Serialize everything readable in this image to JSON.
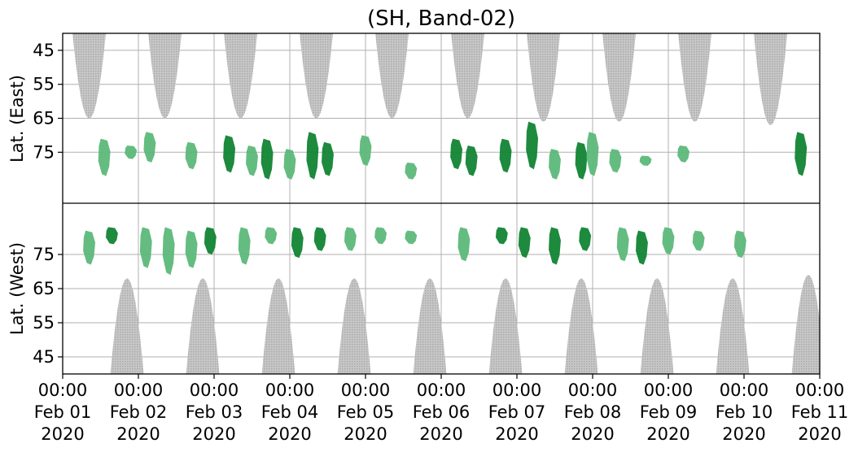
{
  "chart_data": {
    "type": "heatmap",
    "title": "(SH, Band-02)",
    "ylabel_top": "Lat. (East)",
    "ylabel_bottom": "Lat. (West)",
    "y_ticks_top": [
      "45",
      "55",
      "65",
      "75"
    ],
    "y_ticks_bottom": [
      "75",
      "65",
      "55",
      "45"
    ],
    "x_ticks": [
      {
        "time": "00:00",
        "date": "Feb 01",
        "year": "2020"
      },
      {
        "time": "00:00",
        "date": "Feb 02",
        "year": "2020"
      },
      {
        "time": "00:00",
        "date": "Feb 03",
        "year": "2020"
      },
      {
        "time": "00:00",
        "date": "Feb 04",
        "year": "2020"
      },
      {
        "time": "00:00",
        "date": "Feb 05",
        "year": "2020"
      },
      {
        "time": "00:00",
        "date": "Feb 06",
        "year": "2020"
      },
      {
        "time": "00:00",
        "date": "Feb 07",
        "year": "2020"
      },
      {
        "time": "00:00",
        "date": "Feb 08",
        "year": "2020"
      },
      {
        "time": "00:00",
        "date": "Feb 09",
        "year": "2020"
      },
      {
        "time": "00:00",
        "date": "Feb 10",
        "year": "2020"
      },
      {
        "time": "00:00",
        "date": "Feb 11",
        "year": "2020"
      }
    ],
    "x_range": [
      "2020-02-01 00:00",
      "2020-02-11 00:00"
    ],
    "lat_range": [
      40,
      90
    ],
    "grid": true,
    "colors": {
      "activity_light": "#5cb87a",
      "activity_dark": "#118434",
      "daylight_gray": "#bdbdbd",
      "grid": "#b0b0b0"
    },
    "daylight_east": [
      {
        "center_day": 0.35,
        "half_width_day": 0.22,
        "min_lat": 65
      },
      {
        "center_day": 1.35,
        "half_width_day": 0.22,
        "min_lat": 65
      },
      {
        "center_day": 2.35,
        "half_width_day": 0.22,
        "min_lat": 65
      },
      {
        "center_day": 3.35,
        "half_width_day": 0.22,
        "min_lat": 65
      },
      {
        "center_day": 4.35,
        "half_width_day": 0.22,
        "min_lat": 65
      },
      {
        "center_day": 5.35,
        "half_width_day": 0.22,
        "min_lat": 65
      },
      {
        "center_day": 6.35,
        "half_width_day": 0.22,
        "min_lat": 66
      },
      {
        "center_day": 7.35,
        "half_width_day": 0.22,
        "min_lat": 66
      },
      {
        "center_day": 8.35,
        "half_width_day": 0.22,
        "min_lat": 66
      },
      {
        "center_day": 9.35,
        "half_width_day": 0.22,
        "min_lat": 67
      }
    ],
    "daylight_west": [
      {
        "center_day": 0.85,
        "half_width_day": 0.22,
        "min_lat": 68
      },
      {
        "center_day": 1.85,
        "half_width_day": 0.22,
        "min_lat": 68
      },
      {
        "center_day": 2.85,
        "half_width_day": 0.22,
        "min_lat": 68
      },
      {
        "center_day": 3.85,
        "half_width_day": 0.22,
        "min_lat": 68
      },
      {
        "center_day": 4.85,
        "half_width_day": 0.22,
        "min_lat": 68
      },
      {
        "center_day": 5.85,
        "half_width_day": 0.22,
        "min_lat": 68
      },
      {
        "center_day": 6.85,
        "half_width_day": 0.22,
        "min_lat": 68
      },
      {
        "center_day": 7.85,
        "half_width_day": 0.22,
        "min_lat": 68
      },
      {
        "center_day": 8.85,
        "half_width_day": 0.22,
        "min_lat": 68
      },
      {
        "center_day": 9.85,
        "half_width_day": 0.22,
        "min_lat": 69
      }
    ],
    "activity_east": [
      {
        "day": 0.55,
        "lat_top": 71,
        "lat_bottom": 82,
        "level": "light"
      },
      {
        "day": 0.9,
        "lat_top": 73,
        "lat_bottom": 77,
        "level": "light"
      },
      {
        "day": 1.15,
        "lat_top": 69,
        "lat_bottom": 78,
        "level": "light"
      },
      {
        "day": 1.7,
        "lat_top": 72,
        "lat_bottom": 80,
        "level": "light"
      },
      {
        "day": 2.2,
        "lat_top": 70,
        "lat_bottom": 81,
        "level": "dark"
      },
      {
        "day": 2.5,
        "lat_top": 73,
        "lat_bottom": 82,
        "level": "light"
      },
      {
        "day": 2.7,
        "lat_top": 71,
        "lat_bottom": 83,
        "level": "dark"
      },
      {
        "day": 3.0,
        "lat_top": 74,
        "lat_bottom": 83,
        "level": "light"
      },
      {
        "day": 3.3,
        "lat_top": 69,
        "lat_bottom": 83,
        "level": "dark"
      },
      {
        "day": 3.5,
        "lat_top": 72,
        "lat_bottom": 82,
        "level": "dark"
      },
      {
        "day": 4.0,
        "lat_top": 70,
        "lat_bottom": 79,
        "level": "light"
      },
      {
        "day": 4.6,
        "lat_top": 78,
        "lat_bottom": 83,
        "level": "light"
      },
      {
        "day": 5.2,
        "lat_top": 71,
        "lat_bottom": 80,
        "level": "dark"
      },
      {
        "day": 5.4,
        "lat_top": 73,
        "lat_bottom": 82,
        "level": "dark"
      },
      {
        "day": 5.85,
        "lat_top": 71,
        "lat_bottom": 81,
        "level": "dark"
      },
      {
        "day": 6.2,
        "lat_top": 66,
        "lat_bottom": 80,
        "level": "dark"
      },
      {
        "day": 6.5,
        "lat_top": 74,
        "lat_bottom": 83,
        "level": "light"
      },
      {
        "day": 6.85,
        "lat_top": 72,
        "lat_bottom": 83,
        "level": "dark"
      },
      {
        "day": 7.0,
        "lat_top": 69,
        "lat_bottom": 82,
        "level": "light"
      },
      {
        "day": 7.3,
        "lat_top": 74,
        "lat_bottom": 81,
        "level": "light"
      },
      {
        "day": 7.7,
        "lat_top": 76,
        "lat_bottom": 79,
        "level": "light"
      },
      {
        "day": 8.2,
        "lat_top": 73,
        "lat_bottom": 78,
        "level": "light"
      },
      {
        "day": 9.75,
        "lat_top": 69,
        "lat_bottom": 82,
        "level": "dark"
      }
    ],
    "activity_west": [
      {
        "day": 0.35,
        "lat_top": 82,
        "lat_bottom": 72,
        "level": "light"
      },
      {
        "day": 0.65,
        "lat_top": 83,
        "lat_bottom": 78,
        "level": "dark"
      },
      {
        "day": 1.1,
        "lat_top": 83,
        "lat_bottom": 71,
        "level": "light"
      },
      {
        "day": 1.4,
        "lat_top": 83,
        "lat_bottom": 69,
        "level": "light"
      },
      {
        "day": 1.7,
        "lat_top": 82,
        "lat_bottom": 71,
        "level": "light"
      },
      {
        "day": 1.95,
        "lat_top": 83,
        "lat_bottom": 75,
        "level": "dark"
      },
      {
        "day": 2.4,
        "lat_top": 83,
        "lat_bottom": 72,
        "level": "light"
      },
      {
        "day": 2.75,
        "lat_top": 83,
        "lat_bottom": 78,
        "level": "light"
      },
      {
        "day": 3.1,
        "lat_top": 83,
        "lat_bottom": 74,
        "level": "dark"
      },
      {
        "day": 3.4,
        "lat_top": 83,
        "lat_bottom": 76,
        "level": "dark"
      },
      {
        "day": 3.8,
        "lat_top": 83,
        "lat_bottom": 76,
        "level": "light"
      },
      {
        "day": 4.2,
        "lat_top": 83,
        "lat_bottom": 78,
        "level": "light"
      },
      {
        "day": 4.6,
        "lat_top": 82,
        "lat_bottom": 78,
        "level": "light"
      },
      {
        "day": 5.3,
        "lat_top": 83,
        "lat_bottom": 73,
        "level": "light"
      },
      {
        "day": 5.8,
        "lat_top": 83,
        "lat_bottom": 78,
        "level": "dark"
      },
      {
        "day": 6.1,
        "lat_top": 83,
        "lat_bottom": 74,
        "level": "dark"
      },
      {
        "day": 6.5,
        "lat_top": 83,
        "lat_bottom": 72,
        "level": "dark"
      },
      {
        "day": 6.9,
        "lat_top": 83,
        "lat_bottom": 76,
        "level": "dark"
      },
      {
        "day": 7.4,
        "lat_top": 83,
        "lat_bottom": 73,
        "level": "light"
      },
      {
        "day": 7.65,
        "lat_top": 82,
        "lat_bottom": 72,
        "level": "dark"
      },
      {
        "day": 8.0,
        "lat_top": 83,
        "lat_bottom": 75,
        "level": "light"
      },
      {
        "day": 8.4,
        "lat_top": 82,
        "lat_bottom": 76,
        "level": "light"
      },
      {
        "day": 8.95,
        "lat_top": 82,
        "lat_bottom": 74,
        "level": "light"
      }
    ]
  }
}
